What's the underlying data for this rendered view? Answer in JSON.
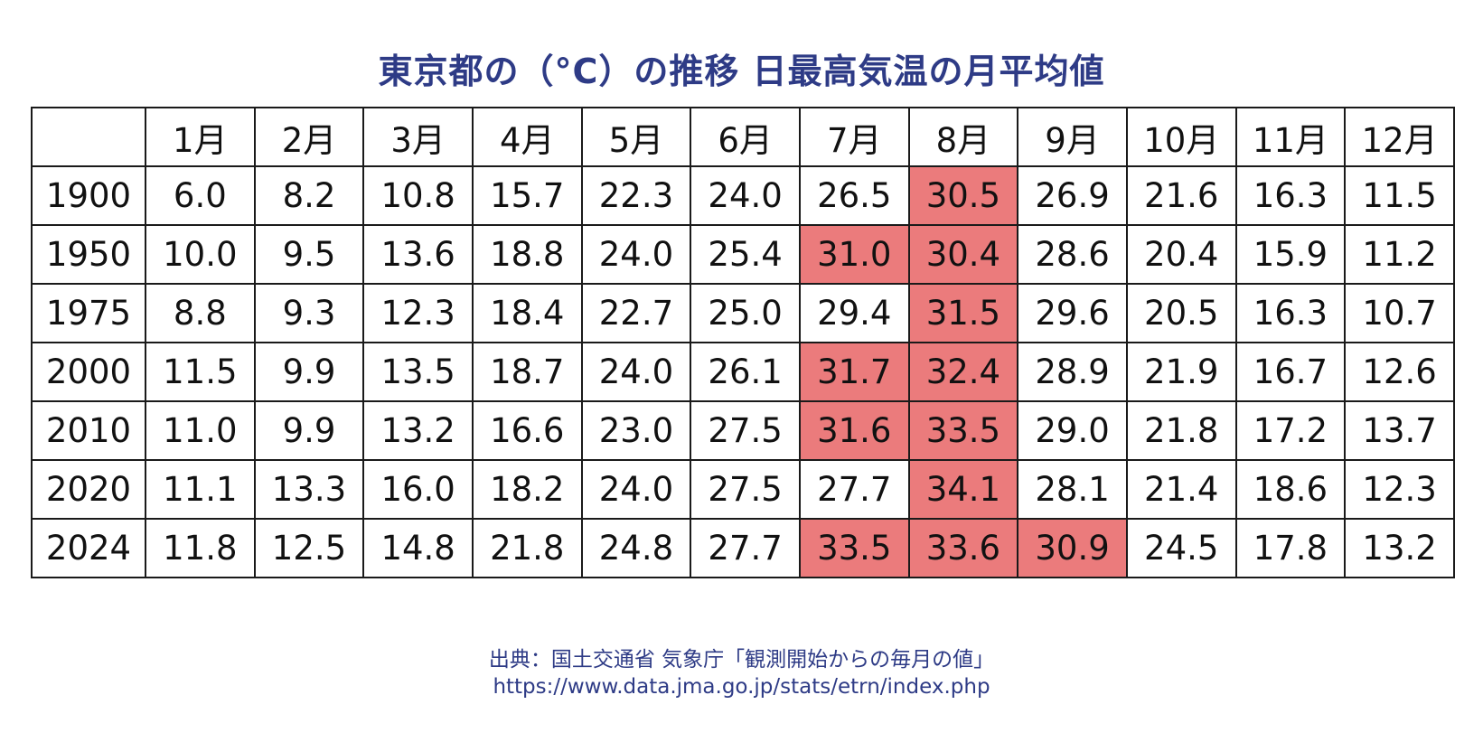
{
  "title": "東京都の（°C）の推移 日最高気温の月平均値",
  "chart_data": {
    "type": "table",
    "title": "東京都の（°C）の推移 日最高気温の月平均値",
    "columns": [
      "",
      "1月",
      "2月",
      "3月",
      "4月",
      "5月",
      "6月",
      "7月",
      "8月",
      "9月",
      "10月",
      "11月",
      "12月"
    ],
    "rows": [
      {
        "year": "1900",
        "values": [
          "6.0",
          "8.2",
          "10.8",
          "15.7",
          "22.3",
          "24.0",
          "26.5",
          "30.5",
          "26.9",
          "21.6",
          "16.3",
          "11.5"
        ]
      },
      {
        "year": "1950",
        "values": [
          "10.0",
          "9.5",
          "13.6",
          "18.8",
          "24.0",
          "25.4",
          "31.0",
          "30.4",
          "28.6",
          "20.4",
          "15.9",
          "11.2"
        ]
      },
      {
        "year": "1975",
        "values": [
          "8.8",
          "9.3",
          "12.3",
          "18.4",
          "22.7",
          "25.0",
          "29.4",
          "31.5",
          "29.6",
          "20.5",
          "16.3",
          "10.7"
        ]
      },
      {
        "year": "2000",
        "values": [
          "11.5",
          "9.9",
          "13.5",
          "18.7",
          "24.0",
          "26.1",
          "31.7",
          "32.4",
          "28.9",
          "21.9",
          "16.7",
          "12.6"
        ]
      },
      {
        "year": "2010",
        "values": [
          "11.0",
          "9.9",
          "13.2",
          "16.6",
          "23.0",
          "27.5",
          "31.6",
          "33.5",
          "29.0",
          "21.8",
          "17.2",
          "13.7"
        ]
      },
      {
        "year": "2020",
        "values": [
          "11.1",
          "13.3",
          "16.0",
          "18.2",
          "24.0",
          "27.5",
          "27.7",
          "34.1",
          "28.1",
          "21.4",
          "18.6",
          "12.3"
        ]
      },
      {
        "year": "2024",
        "values": [
          "11.8",
          "12.5",
          "14.8",
          "21.8",
          "24.8",
          "27.7",
          "33.5",
          "33.6",
          "30.9",
          "24.5",
          "17.8",
          "13.2"
        ]
      }
    ],
    "highlight_threshold": 30,
    "highlight_color": "#eb7b7c"
  },
  "source": {
    "line1": "出典：国土交通省 気象庁「観測開始からの毎月の値」",
    "line2": "https://www.data.jma.go.jp/stats/etrn/index.php"
  }
}
